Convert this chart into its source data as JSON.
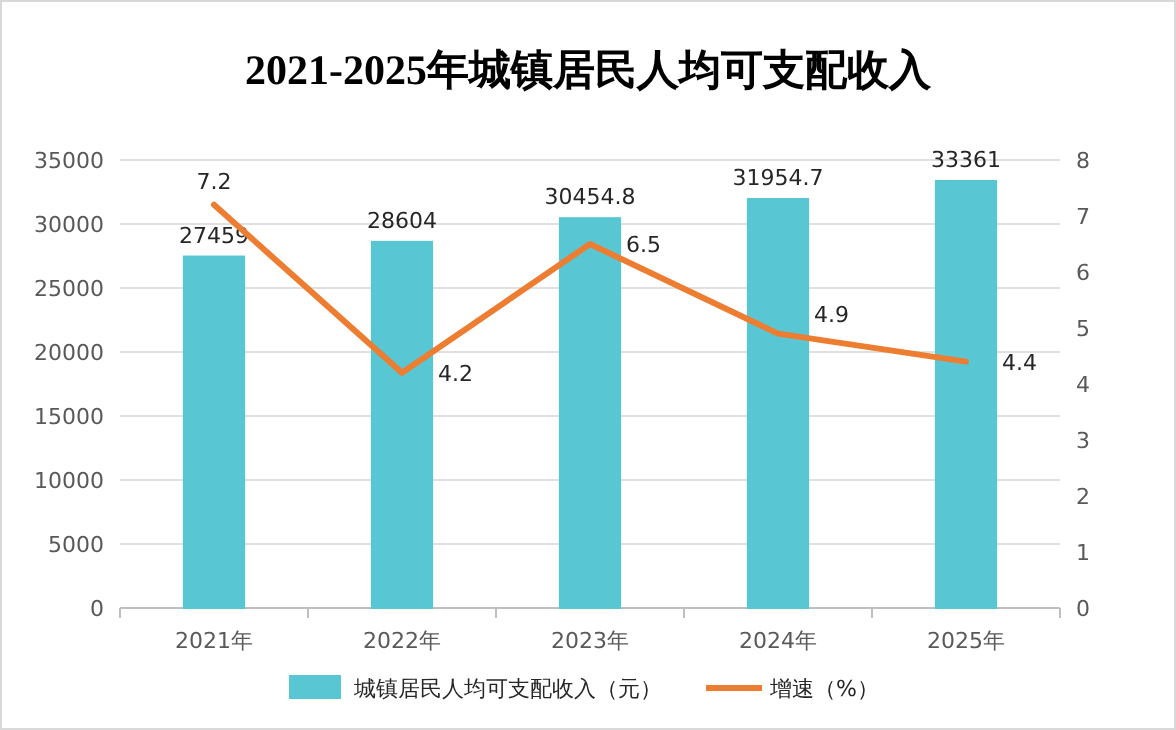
{
  "chart_data": {
    "type": "bar",
    "title": "2021-2025年城镇居民人均可支配收入",
    "categories": [
      "2021年",
      "2022年",
      "2023年",
      "2024年",
      "2025年"
    ],
    "series": [
      {
        "name": "城镇居民人均可支配收入（元）",
        "color": "#58c6d3",
        "values": [
          27459,
          28604,
          30454.8,
          31954.7,
          33361
        ]
      },
      {
        "name": "增速（%）",
        "type": "line",
        "axis": "y2",
        "color": "#ed7d31",
        "values": [
          7.2,
          4.2,
          6.5,
          4.9,
          4.4
        ]
      }
    ],
    "ylim": [
      0,
      35000
    ],
    "yticks": [
      0,
      5000,
      10000,
      15000,
      20000,
      25000,
      30000,
      35000
    ],
    "y2lim": [
      0,
      8
    ],
    "y2ticks": [
      0,
      1,
      2,
      3,
      4,
      5,
      6,
      7,
      8
    ],
    "data_labels": true,
    "grid": "y",
    "legend": "bottom",
    "marker": "none"
  }
}
